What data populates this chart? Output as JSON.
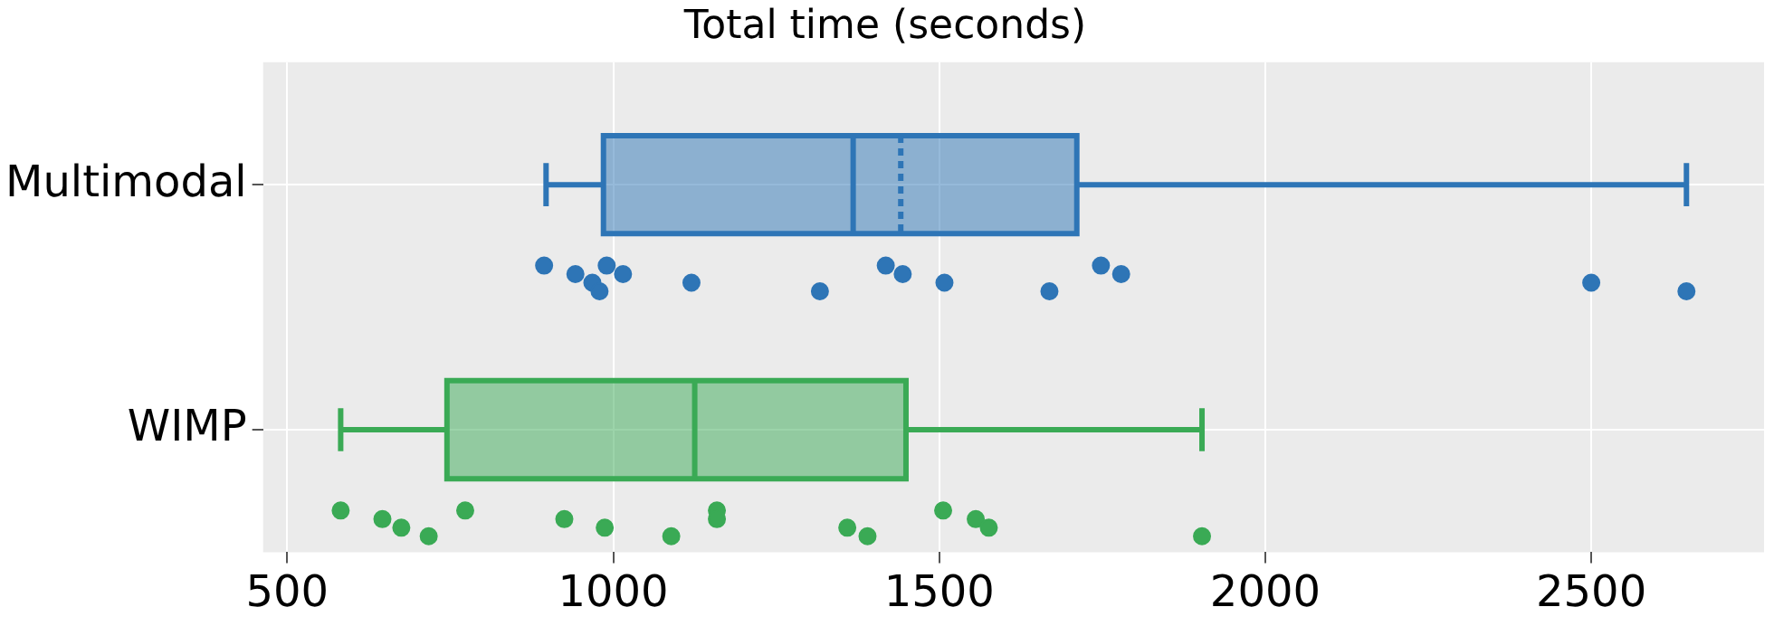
{
  "chart_data": {
    "type": "box",
    "title": "Total time (seconds)",
    "orientation": "horizontal",
    "categories": [
      "Multimodal",
      "WIMP"
    ],
    "colors": [
      "#2e75b6",
      "#3aaa55"
    ],
    "boxes": [
      {
        "low": 897,
        "q1": 985,
        "median": 1368,
        "mean": 1441,
        "q3": 1711,
        "high": 2646
      },
      {
        "low": 582,
        "q1": 745,
        "median": 1125,
        "q3": 1449,
        "high": 1903
      }
    ],
    "series": [
      {
        "type": "scatter",
        "color": "#2e75b6",
        "x": [
          "Multimodal",
          "Multimodal",
          "Multimodal",
          "Multimodal",
          "Multimodal",
          "Multimodal",
          "Multimodal",
          "Multimodal",
          "Multimodal",
          "Multimodal",
          "Multimodal",
          "Multimodal",
          "Multimodal",
          "Multimodal",
          "Multimodal",
          "Multimodal"
        ],
        "values": [
          894,
          942,
          968,
          979,
          990,
          1015,
          1120,
          1317,
          1418,
          1444,
          1508,
          1669,
          1748,
          1779,
          2500,
          2646
        ]
      },
      {
        "type": "scatter",
        "color": "#3aaa55",
        "x": [
          "WIMP",
          "WIMP",
          "WIMP",
          "WIMP",
          "WIMP",
          "WIMP",
          "WIMP",
          "WIMP",
          "WIMP",
          "WIMP",
          "WIMP",
          "WIMP",
          "WIMP",
          "WIMP",
          "WIMP",
          "WIMP"
        ],
        "values": [
          582,
          646,
          675,
          717,
          773,
          925,
          987,
          1089,
          1159,
          1159,
          1359,
          1390,
          1506,
          1556,
          1576,
          1903
        ]
      }
    ],
    "xlim": [
      463,
      2765
    ],
    "xticks": [
      500,
      1000,
      1500,
      2000,
      2500
    ],
    "grid": true,
    "legend": false
  }
}
